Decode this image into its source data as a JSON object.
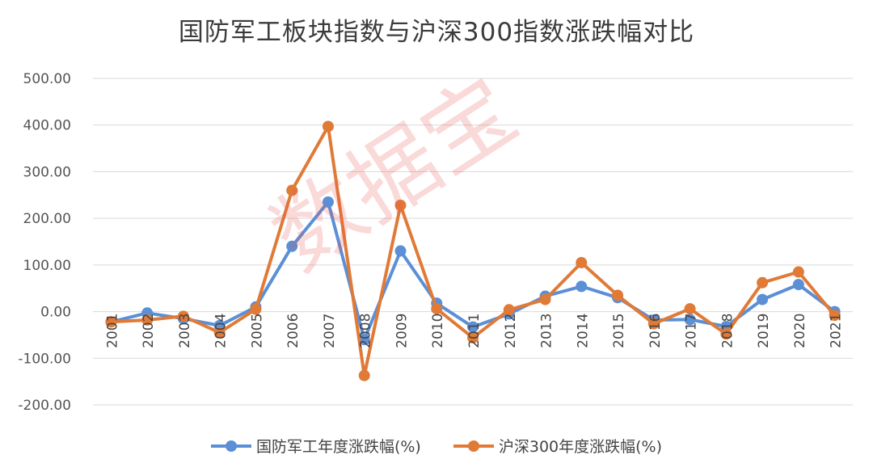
{
  "chart_data": {
    "type": "line",
    "title": "国防军工板块指数与沪深300指数涨跌幅对比",
    "categories": [
      "2001",
      "2002",
      "2003",
      "2004",
      "2005",
      "2006",
      "2007",
      "2008",
      "2009",
      "2010",
      "2011",
      "2012",
      "2013",
      "2014",
      "2015",
      "2016",
      "2017",
      "2018",
      "2019",
      "2020",
      "2021"
    ],
    "series": [
      {
        "name": "国防军工年度涨跌幅(%)",
        "color": "#5B8FD6",
        "values": [
          -22,
          -3,
          -15,
          -30,
          10,
          140,
          235,
          -60,
          130,
          18,
          -33,
          -5,
          33,
          54,
          30,
          -18,
          -17,
          -32,
          26,
          58,
          0
        ]
      },
      {
        "name": "沪深300年度涨跌幅(%)",
        "color": "#E07A37",
        "values": [
          -22,
          -18,
          -10,
          -45,
          5,
          260,
          397,
          -137,
          228,
          6,
          -56,
          4,
          26,
          105,
          35,
          -26,
          6,
          -48,
          62,
          85,
          -8
        ]
      }
    ],
    "ylim": [
      -200,
      500
    ],
    "yticks": [
      "500.00",
      "400.00",
      "300.00",
      "200.00",
      "100.00",
      "0.00",
      "-100.00",
      "-200.00"
    ],
    "ytick_values": [
      500,
      400,
      300,
      200,
      100,
      0,
      -100,
      -200
    ],
    "grid": true,
    "legend_position": "bottom"
  },
  "watermark": "数据宝"
}
